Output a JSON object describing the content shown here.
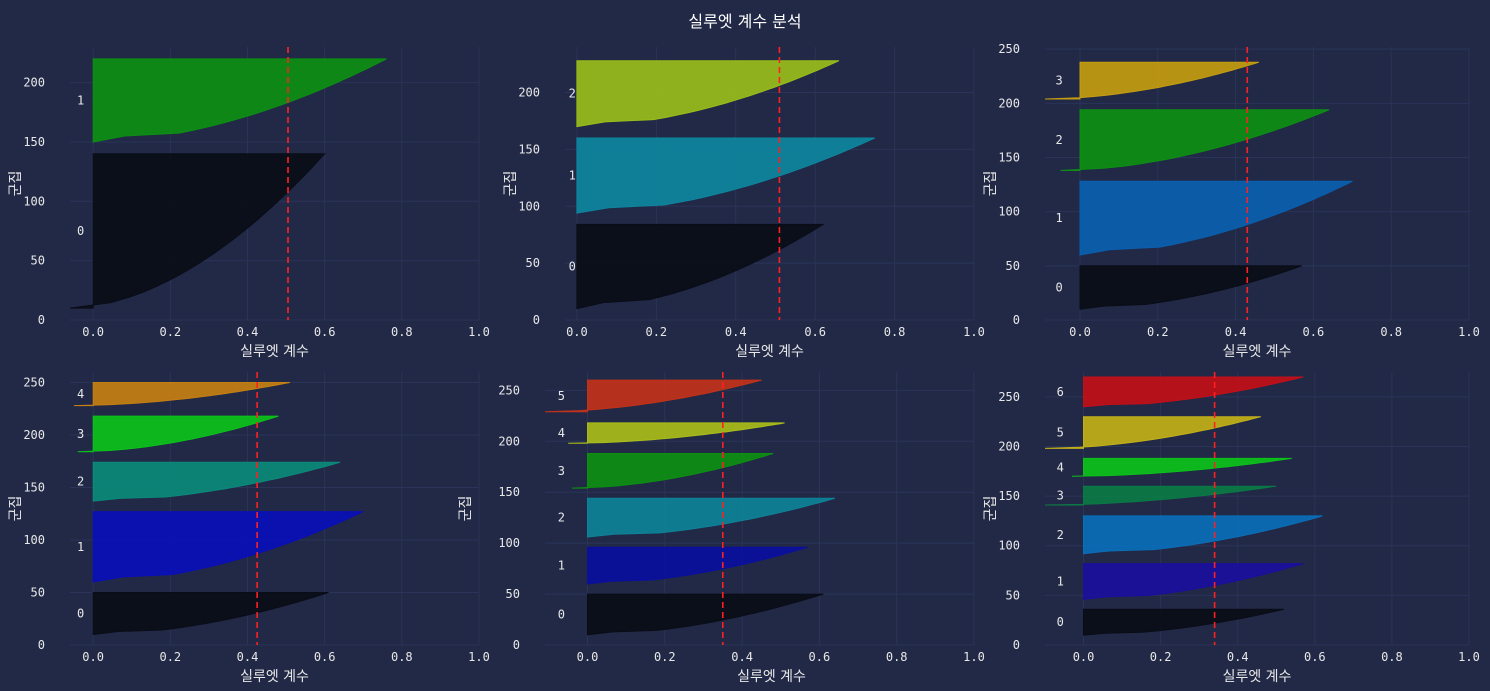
{
  "figure": {
    "title": "실루엣 계수 분석",
    "background": "#212946",
    "grid_color": "#2A3459",
    "avg_line_color": "#ff2020"
  },
  "chart_data": [
    {
      "type": "silhouette",
      "xlabel": "실루엣 계수",
      "ylabel": "군집",
      "xlim": [
        -0.06,
        1.0
      ],
      "ylim": [
        0,
        230
      ],
      "xticks": [
        "0.0",
        "0.2",
        "0.4",
        "0.6",
        "0.8",
        "1.0"
      ],
      "yticks": [
        "0",
        "50",
        "100",
        "150",
        "200"
      ],
      "ytick_values": [
        0,
        50,
        100,
        150,
        200
      ],
      "average_silhouette": 0.505,
      "clusters": [
        {
          "label": "0",
          "color": "#0a0d17",
          "y_start": 10,
          "y_end": 140,
          "min": -0.06,
          "max": 0.6
        },
        {
          "label": "1",
          "color": "#0d8f12",
          "y_start": 150,
          "y_end": 220,
          "min": 0.0,
          "max": 0.76
        }
      ]
    },
    {
      "type": "silhouette",
      "xlabel": "실루엣 계수",
      "ylabel": "군집",
      "xlim": [
        -0.03,
        1.0
      ],
      "ylim": [
        0,
        240
      ],
      "xticks": [
        "0.0",
        "0.2",
        "0.4",
        "0.6",
        "0.8",
        "1.0"
      ],
      "yticks": [
        "0",
        "50",
        "100",
        "150",
        "200"
      ],
      "ytick_values": [
        0,
        50,
        100,
        150,
        200
      ],
      "average_silhouette": 0.51,
      "clusters": [
        {
          "label": "0",
          "color": "#0a0d17",
          "y_start": 10,
          "y_end": 84,
          "min": 0.0,
          "max": 0.62
        },
        {
          "label": "1",
          "color": "#0e859e",
          "y_start": 94,
          "y_end": 160,
          "min": 0.0,
          "max": 0.75
        },
        {
          "label": "2",
          "color": "#99bd1a",
          "y_start": 170,
          "y_end": 228,
          "min": 0.0,
          "max": 0.66
        }
      ]
    },
    {
      "type": "silhouette",
      "xlabel": "실루엣 계수",
      "ylabel": "군집",
      "xlim": [
        -0.09,
        1.0
      ],
      "ylim": [
        0,
        252
      ],
      "xticks": [
        "0.0",
        "0.2",
        "0.4",
        "0.6",
        "0.8",
        "1.0"
      ],
      "yticks": [
        "0",
        "50",
        "100",
        "150",
        "200",
        "250"
      ],
      "ytick_values": [
        0,
        50,
        100,
        150,
        200,
        250
      ],
      "average_silhouette": 0.43,
      "clusters": [
        {
          "label": "0",
          "color": "#0a0d17",
          "y_start": 10,
          "y_end": 50,
          "min": 0.0,
          "max": 0.57
        },
        {
          "label": "1",
          "color": "#0a5fb0",
          "y_start": 60,
          "y_end": 128,
          "min": 0.0,
          "max": 0.7
        },
        {
          "label": "2",
          "color": "#0d8f12",
          "y_start": 138,
          "y_end": 194,
          "min": -0.05,
          "max": 0.64
        },
        {
          "label": "3",
          "color": "#c49c10",
          "y_start": 204,
          "y_end": 238,
          "min": -0.09,
          "max": 0.46
        }
      ]
    },
    {
      "type": "silhouette",
      "xlabel": "실루엣 계수",
      "ylabel": "군집",
      "xlim": [
        -0.06,
        1.0
      ],
      "ylim": [
        0,
        260
      ],
      "xticks": [
        "0.0",
        "0.2",
        "0.4",
        "0.6",
        "0.8",
        "1.0"
      ],
      "yticks": [
        "0",
        "50",
        "100",
        "150",
        "200",
        "250"
      ],
      "ytick_values": [
        0,
        50,
        100,
        150,
        200,
        250
      ],
      "average_silhouette": 0.425,
      "clusters": [
        {
          "label": "0",
          "color": "#0a0d17",
          "y_start": 10,
          "y_end": 50,
          "min": 0.0,
          "max": 0.61
        },
        {
          "label": "1",
          "color": "#0a0fb8",
          "y_start": 60,
          "y_end": 127,
          "min": 0.0,
          "max": 0.7
        },
        {
          "label": "2",
          "color": "#0b8a7a",
          "y_start": 137,
          "y_end": 174,
          "min": 0.0,
          "max": 0.64
        },
        {
          "label": "3",
          "color": "#0cc21a",
          "y_start": 184,
          "y_end": 218,
          "min": -0.04,
          "max": 0.48
        },
        {
          "label": "4",
          "color": "#c57f12",
          "y_start": 228,
          "y_end": 250,
          "min": -0.05,
          "max": 0.51
        }
      ]
    },
    {
      "type": "silhouette",
      "xlabel": "실루엣 계수",
      "ylabel": "군집",
      "xlim": [
        -0.11,
        1.0
      ],
      "ylim": [
        0,
        268
      ],
      "xticks": [
        "0.0",
        "0.2",
        "0.4",
        "0.6",
        "0.8",
        "1.0"
      ],
      "yticks": [
        "0",
        "50",
        "100",
        "150",
        "200",
        "250"
      ],
      "ytick_values": [
        0,
        50,
        100,
        150,
        200,
        250
      ],
      "average_silhouette": 0.35,
      "clusters": [
        {
          "label": "0",
          "color": "#0a0d17",
          "y_start": 10,
          "y_end": 50,
          "min": 0.0,
          "max": 0.61
        },
        {
          "label": "1",
          "color": "#0a0f9e",
          "y_start": 60,
          "y_end": 96,
          "min": 0.0,
          "max": 0.57
        },
        {
          "label": "2",
          "color": "#0e8298",
          "y_start": 106,
          "y_end": 144,
          "min": 0.0,
          "max": 0.64
        },
        {
          "label": "3",
          "color": "#0d8f12",
          "y_start": 154,
          "y_end": 188,
          "min": -0.04,
          "max": 0.48
        },
        {
          "label": "4",
          "color": "#a9bd1a",
          "y_start": 198,
          "y_end": 218,
          "min": -0.05,
          "max": 0.51
        },
        {
          "label": "5",
          "color": "#c2321a",
          "y_start": 229,
          "y_end": 260,
          "min": -0.11,
          "max": 0.45
        }
      ]
    },
    {
      "type": "silhouette",
      "xlabel": "실루엣 계수",
      "ylabel": "군집",
      "xlim": [
        -0.1,
        1.0
      ],
      "ylim": [
        0,
        275
      ],
      "xticks": [
        "0.0",
        "0.2",
        "0.4",
        "0.6",
        "0.8",
        "1.0"
      ],
      "yticks": [
        "0",
        "50",
        "100",
        "150",
        "200",
        "250"
      ],
      "ytick_values": [
        0,
        50,
        100,
        150,
        200,
        250
      ],
      "average_silhouette": 0.34,
      "clusters": [
        {
          "label": "0",
          "color": "#0a0d17",
          "y_start": 10,
          "y_end": 36,
          "min": 0.0,
          "max": 0.52
        },
        {
          "label": "1",
          "color": "#1a0f9e",
          "y_start": 46,
          "y_end": 82,
          "min": 0.0,
          "max": 0.57
        },
        {
          "label": "2",
          "color": "#0a6eb8",
          "y_start": 92,
          "y_end": 130,
          "min": 0.0,
          "max": 0.62
        },
        {
          "label": "3",
          "color": "#0a7a44",
          "y_start": 141,
          "y_end": 160,
          "min": -0.1,
          "max": 0.5
        },
        {
          "label": "4",
          "color": "#0cc21a",
          "y_start": 170,
          "y_end": 188,
          "min": -0.03,
          "max": 0.54
        },
        {
          "label": "5",
          "color": "#c2b018",
          "y_start": 198,
          "y_end": 230,
          "min": -0.1,
          "max": 0.46
        },
        {
          "label": "6",
          "color": "#c20f18",
          "y_start": 240,
          "y_end": 270,
          "min": 0.0,
          "max": 0.57
        }
      ]
    }
  ]
}
